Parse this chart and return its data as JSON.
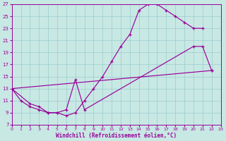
{
  "bg_color": "#c8e8e4",
  "grid_color": "#99cccc",
  "line_color": "#990099",
  "xmin": 0,
  "xmax": 23,
  "ymin": 7,
  "ymax": 27,
  "xlabel": "Windchill (Refroidissement éolien,°C)",
  "series": [
    {
      "x": [
        0,
        1,
        2,
        3,
        4,
        5,
        6,
        7,
        8,
        9,
        10,
        11,
        12,
        13,
        14,
        15,
        16,
        17,
        18,
        19,
        20,
        21
      ],
      "y": [
        13,
        11,
        10,
        9.5,
        9,
        9,
        8.5,
        9,
        11,
        13,
        15,
        17.5,
        20,
        22,
        26,
        27,
        27,
        26,
        25,
        24,
        23,
        23
      ]
    },
    {
      "x": [
        0,
        2,
        3,
        4,
        5,
        6,
        7,
        8,
        20,
        21,
        22
      ],
      "y": [
        13,
        10.5,
        10,
        9,
        9,
        9.5,
        14.5,
        9.5,
        20,
        20,
        16
      ]
    },
    {
      "x": [
        0,
        22
      ],
      "y": [
        13,
        16
      ]
    }
  ],
  "xtick_fontsize": 4.5,
  "ytick_fontsize": 5.0,
  "xlabel_fontsize": 5.5
}
